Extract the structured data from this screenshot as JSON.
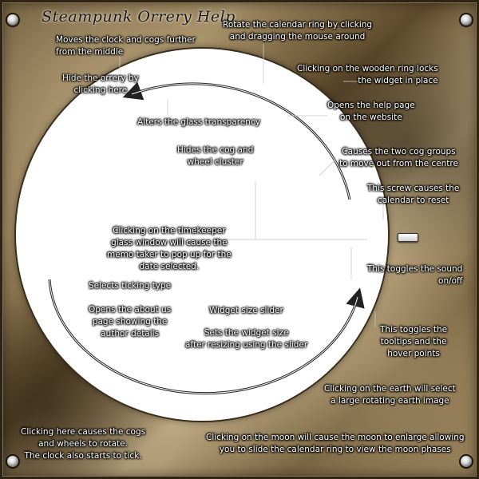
{
  "title": "Steampunk Orrery Help",
  "icons": {
    "screw": "screw-icon",
    "rotate_arrows": "rotate-arrows-icon",
    "lever": "lever-icon"
  },
  "colors": {
    "plate_brass": "#8c7550",
    "glass": "#ffffff",
    "label_text": "#ffffff",
    "title_text": "#1b140a"
  },
  "labels": {
    "rotate_calendar": [
      "Rotate the calendar ring by clicking",
      "and dragging the mouse around"
    ],
    "moves_clock": [
      "Moves the clock and cogs further",
      "from the middle"
    ],
    "hide_orrery": [
      "Hide the orrery by",
      "clicking here"
    ],
    "wooden_ring": [
      "Clicking on the wooden ring locks",
      "the widget in place"
    ],
    "help_page": [
      "Opens the help page",
      "on the website"
    ],
    "glass_transparency": [
      "Alters the glass transparency"
    ],
    "cog_groups": [
      "Causes the two cog groups",
      "to move out from the centre"
    ],
    "hide_cog": [
      "Hides the cog and",
      "wheel cluster"
    ],
    "screw_reset": [
      "This screw causes the",
      "calendar to reset"
    ],
    "timekeeper": [
      "Clicking on the timekeeper",
      "glass window will cause the",
      "memo taker to pop up for the",
      "date selected."
    ],
    "sound_toggle": [
      "This toggles the sound",
      "on/off"
    ],
    "ticking_type": [
      "Selects ticking type"
    ],
    "about_page": [
      "Opens the about us",
      "page showing the",
      "author details"
    ],
    "size_slider": [
      "Widget size slider"
    ],
    "size_slider_sub": [
      "Sets the widget size",
      "after resizing using the slider"
    ],
    "tooltips": [
      "This toggles the",
      "tooltips and the",
      "hover points"
    ],
    "earth": [
      "Clicking on the earth will select",
      "a large rotating earth image"
    ],
    "cogs_rotate": [
      "Clicking here causes the cogs",
      "and wheels to rotate.",
      "The clock also starts to tick."
    ],
    "moon": [
      "Clicking on the moon will cause the moon to enlarge allowing",
      "you to slide the calendar ring to view the moon phases"
    ]
  }
}
